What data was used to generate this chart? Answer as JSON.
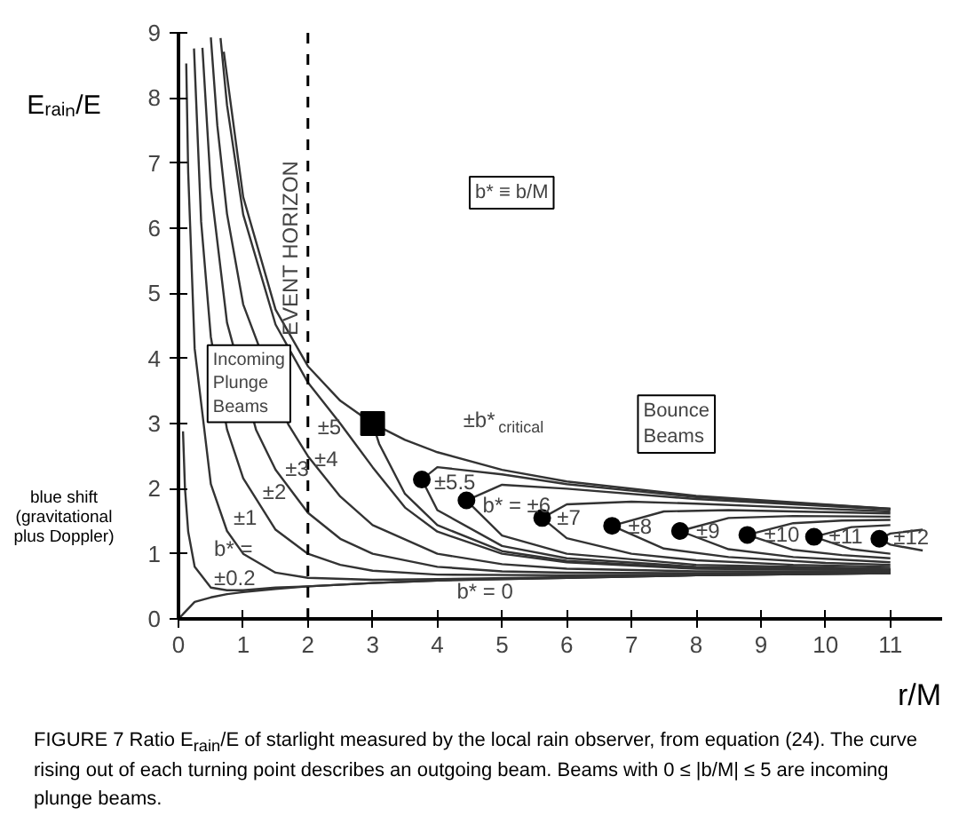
{
  "chart_data": {
    "type": "line",
    "xlabel": "r/M",
    "ylabel": "Eᵣₐᵢₙ/E",
    "xlim": [
      0,
      11.8
    ],
    "ylim": [
      0,
      9
    ],
    "xticks": [
      0,
      1,
      2,
      3,
      4,
      5,
      6,
      7,
      8,
      9,
      10,
      11
    ],
    "yticks": [
      0,
      1,
      2,
      3,
      4,
      5,
      6,
      7,
      8,
      9
    ],
    "series": [
      {
        "color": "#333333",
        "x": [
          0,
          0.25,
          0.5,
          0.75,
          1,
          1.5,
          2,
          3,
          4,
          6,
          8,
          11
        ],
        "values": [
          0,
          0.26,
          0.33,
          0.38,
          0.41,
          0.46,
          0.5,
          0.55,
          0.59,
          0.63,
          0.67,
          0.7
        ]
      },
      {
        "color": "#333333",
        "x": [
          0.07,
          0.1,
          0.15,
          0.25,
          0.5,
          0.75,
          1,
          1.5,
          2,
          3,
          4,
          6,
          8,
          11
        ],
        "values": [
          2.88,
          2.01,
          1.34,
          0.8,
          0.48,
          0.44,
          0.44,
          0.48,
          0.5,
          0.55,
          0.59,
          0.63,
          0.67,
          0.7
        ]
      },
      {
        "color": "#333333",
        "x": [
          0.12,
          0.15,
          0.25,
          0.5,
          0.75,
          1,
          1.5,
          2,
          3,
          4,
          6,
          8,
          11
        ],
        "values": [
          8.53,
          6.86,
          4.15,
          2.07,
          1.35,
          1.0,
          0.71,
          0.63,
          0.6,
          0.61,
          0.64,
          0.67,
          0.7
        ]
      },
      {
        "color": "#333333",
        "x": [
          0.24,
          0.35,
          0.5,
          0.75,
          1,
          1.5,
          2,
          2.5,
          3,
          4,
          6,
          8,
          11
        ],
        "values": [
          8.76,
          6.1,
          4.33,
          2.91,
          2.16,
          1.37,
          1.0,
          0.83,
          0.74,
          0.68,
          0.67,
          0.68,
          0.71
        ]
      },
      {
        "color": "#333333",
        "x": [
          0.37,
          0.5,
          0.75,
          1.2,
          1.5,
          2,
          2.5,
          3,
          4,
          5,
          6,
          8,
          11
        ],
        "values": [
          8.77,
          6.63,
          4.55,
          2.9,
          2.29,
          1.63,
          1.23,
          1.0,
          0.8,
          0.73,
          0.71,
          0.7,
          0.72
        ]
      },
      {
        "color": "#333333",
        "x": [
          0.5,
          0.6,
          0.75,
          1,
          1.7,
          2,
          2.5,
          3,
          4,
          5,
          6,
          8,
          11
        ],
        "values": [
          8.93,
          7.58,
          6.22,
          4.83,
          2.98,
          2.5,
          1.88,
          1.44,
          1.0,
          0.84,
          0.77,
          0.73,
          0.73
        ]
      },
      {
        "color": "#333333",
        "x": [
          0.65,
          0.75,
          1,
          1.5,
          2,
          2.5,
          3,
          3.5,
          4,
          5,
          6,
          8,
          11
        ],
        "values": [
          8.92,
          7.89,
          6.21,
          4.52,
          3.63,
          3.0,
          2.33,
          1.71,
          1.34,
          1.0,
          0.87,
          0.77,
          0.75
        ]
      },
      {
        "color": "#333333",
        "x": [
          0.7,
          1,
          1.5,
          2,
          2.5,
          3,
          3.1,
          3.5,
          4,
          5,
          6,
          8,
          11
        ],
        "values": [
          8.71,
          6.48,
          4.75,
          3.88,
          3.35,
          3,
          2.69,
          1.92,
          1.44,
          1.04,
          0.89,
          0.78,
          0.75
        ]
      },
      {
        "color": "#333333",
        "x": [
          3,
          3.1,
          3.5,
          4,
          5,
          6,
          8,
          11
        ],
        "values": [
          3,
          2.95,
          2.75,
          2.56,
          2.29,
          2.11,
          1.89,
          1.69
        ]
      },
      {
        "color": "#333333",
        "x": [
          11,
          8,
          6,
          5,
          4,
          3.76,
          4,
          5,
          6,
          8,
          11
        ],
        "values": [
          0.76,
          0.8,
          0.93,
          1.12,
          1.67,
          2.14,
          2.33,
          2.22,
          2.07,
          1.87,
          1.69
        ]
      },
      {
        "color": "#333333",
        "x": [
          11,
          8,
          6,
          5,
          4.45,
          5,
          6,
          8,
          11
        ],
        "values": [
          0.77,
          0.83,
          1.0,
          1.28,
          1.82,
          2.06,
          2.0,
          1.84,
          1.68
        ]
      },
      {
        "color": "#333333",
        "x": [
          11,
          9.5,
          8,
          7,
          6,
          5.62,
          6,
          7,
          8,
          9.5,
          11
        ],
        "values": [
          0.8,
          0.83,
          0.9,
          1.0,
          1.24,
          1.55,
          1.76,
          1.8,
          1.77,
          1.71,
          1.65
        ]
      },
      {
        "color": "#333333",
        "x": [
          11,
          10,
          8.5,
          7.5,
          6.7,
          7.5,
          8.5,
          10,
          11
        ],
        "values": [
          0.83,
          0.86,
          0.95,
          1.08,
          1.43,
          1.65,
          1.67,
          1.64,
          1.62
        ]
      },
      {
        "color": "#333333",
        "x": [
          11,
          9.5,
          8.5,
          7.75,
          8.5,
          9.5,
          11
        ],
        "values": [
          0.87,
          0.95,
          1.07,
          1.35,
          1.55,
          1.58,
          1.57
        ]
      },
      {
        "color": "#333333",
        "x": [
          11,
          10.25,
          9.5,
          8.79,
          9.5,
          10.25,
          11
        ],
        "values": [
          0.93,
          0.98,
          1.06,
          1.29,
          1.47,
          1.51,
          1.52
        ]
      },
      {
        "color": "#333333",
        "x": [
          11,
          10.4,
          9.82,
          10.4,
          11
        ],
        "values": [
          1.0,
          1.07,
          1.26,
          1.41,
          1.44
        ]
      },
      {
        "color": "#333333",
        "x": [
          11.5,
          11,
          10.83,
          11,
          11.5
        ],
        "values": [
          1.05,
          1.14,
          1.23,
          1.31,
          1.37
        ]
      },
      {
        "type": "scatter",
        "marker": "circle",
        "color": "#000000",
        "x": [
          3.76,
          4.45,
          5.62,
          6.7,
          7.75,
          8.79,
          9.82,
          10.83
        ],
        "values": [
          2.14,
          1.82,
          1.55,
          1.43,
          1.35,
          1.29,
          1.26,
          1.23
        ]
      },
      {
        "type": "scatter",
        "marker": "square",
        "color": "#000000",
        "x": [
          3
        ],
        "values": [
          3
        ]
      }
    ],
    "ref_lines": [
      {
        "axis": "x",
        "value": 2,
        "label": "EVENT HORIZON",
        "line_style": "dashed",
        "color": "#000000"
      }
    ],
    "annotations": [
      "b* = 0",
      "b* =\n±0.2",
      "±1",
      {
        "text": "±2",
        "x": 1.3,
        "y": 1.95
      },
      {
        "text": "±3",
        "x": 1.65,
        "y": 2.3
      },
      {
        "text": "±4",
        "x": 2.1,
        "y": 2.45
      },
      "±5",
      "±b*$_{critical}$",
      {
        "text": "±5.5",
        "x": 3.95,
        "y": 2.1
      },
      {
        "text": "b* = ±6",
        "x": 4.7,
        "y": 1.75
      },
      {
        "text": "±7",
        "x": 5.85,
        "y": 1.55
      },
      {
        "text": "±8",
        "x": 6.95,
        "y": 1.42
      },
      {
        "text": "±9",
        "x": 8.0,
        "y": 1.35
      },
      {
        "text": "±10",
        "x": 9.05,
        "y": 1.3
      },
      {
        "text": "±11",
        "x": 10.05,
        "y": 1.27
      },
      {
        "text": "±12",
        "x": 11.05,
        "y": 1.25
      },
      "Incoming\nPlunge\nBeams",
      "Bounce\nBeams",
      "b* ≡ b/M",
      "blue shift\n(gravitational\nplus Doppler)",
      "FIGURE 7   Ratio E$_{rain}$/E of starlight measured by the local rain observer, from equation (24). The curve rising out of each turning point describes an outgoing beam. Beams with 0 ≤ |b/M| ≤ 5 are incoming plunge beams."
    ]
  }
}
